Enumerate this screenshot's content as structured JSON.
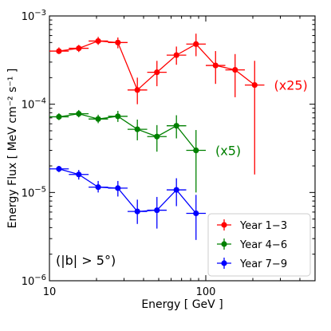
{
  "chart_data": {
    "type": "line",
    "xlabel": "Energy [ GeV ]",
    "ylabel": "Energy Flux [ MeV cm⁻² s⁻¹ ]",
    "xlim": [
      10,
      500
    ],
    "ylim": [
      1e-06,
      0.001
    ],
    "xscale": "log",
    "yscale": "log",
    "x_tick_labels": [
      {
        "value": 10,
        "label": "10"
      },
      {
        "value": 100,
        "label": "100"
      }
    ],
    "y_tick_labels": [
      {
        "value": 1e-06,
        "base": "10",
        "exp": "−6"
      },
      {
        "value": 1e-05,
        "base": "10",
        "exp": "−5"
      },
      {
        "value": 0.0001,
        "base": "10",
        "exp": "−4"
      },
      {
        "value": 0.001,
        "base": "10",
        "exp": "−3"
      }
    ],
    "grid": false,
    "legend_position": "bottom-right",
    "annotation": "(|b| > 5°)",
    "series": [
      {
        "name": "Year 1−3",
        "color": "#ff0000",
        "scale_label": "(x25)",
        "points": [
          {
            "x": 11.5,
            "xlo": 10.0,
            "xhi": 13.3,
            "y": 0.0004,
            "ylo": 0.00037,
            "yhi": 0.00044
          },
          {
            "x": 15.4,
            "xlo": 13.3,
            "xhi": 17.8,
            "y": 0.00043,
            "ylo": 0.00039,
            "yhi": 0.00047
          },
          {
            "x": 20.5,
            "xlo": 17.8,
            "xhi": 23.7,
            "y": 0.00052,
            "ylo": 0.00047,
            "yhi": 0.00058
          },
          {
            "x": 27.4,
            "xlo": 23.7,
            "xhi": 31.6,
            "y": 0.0005,
            "ylo": 0.00043,
            "yhi": 0.00057
          },
          {
            "x": 36.5,
            "xlo": 31.6,
            "xhi": 42.2,
            "y": 0.000145,
            "ylo": 0.0001,
            "yhi": 0.0002
          },
          {
            "x": 48.7,
            "xlo": 42.2,
            "xhi": 56.2,
            "y": 0.00023,
            "ylo": 0.00016,
            "yhi": 0.00031
          },
          {
            "x": 64.9,
            "xlo": 56.2,
            "xhi": 75.0,
            "y": 0.00036,
            "ylo": 0.00028,
            "yhi": 0.00045
          },
          {
            "x": 86.6,
            "xlo": 75.0,
            "xhi": 100.0,
            "y": 0.00048,
            "ylo": 0.00035,
            "yhi": 0.00063
          },
          {
            "x": 115.5,
            "xlo": 100.0,
            "xhi": 133.4,
            "y": 0.000275,
            "ylo": 0.00017,
            "yhi": 0.0004
          },
          {
            "x": 154.0,
            "xlo": 133.4,
            "xhi": 177.8,
            "y": 0.000245,
            "ylo": 0.00012,
            "yhi": 0.00037
          },
          {
            "x": 205.4,
            "xlo": 177.8,
            "xhi": 237.1,
            "y": 0.000165,
            "ylo": 1.6e-05,
            "yhi": 0.00031
          }
        ]
      },
      {
        "name": "Year 4−6",
        "color": "#008000",
        "scale_label": "(x5)",
        "points": [
          {
            "x": 11.5,
            "xlo": 10.0,
            "xhi": 13.3,
            "y": 7.2e-05,
            "ylo": 6.6e-05,
            "yhi": 7.9e-05
          },
          {
            "x": 15.4,
            "xlo": 13.3,
            "xhi": 17.8,
            "y": 7.8e-05,
            "ylo": 7.1e-05,
            "yhi": 8.6e-05
          },
          {
            "x": 20.5,
            "xlo": 17.8,
            "xhi": 23.7,
            "y": 6.8e-05,
            "ylo": 6.1e-05,
            "yhi": 7.6e-05
          },
          {
            "x": 27.4,
            "xlo": 23.7,
            "xhi": 31.6,
            "y": 7.3e-05,
            "ylo": 6.3e-05,
            "yhi": 8.4e-05
          },
          {
            "x": 36.5,
            "xlo": 31.6,
            "xhi": 42.2,
            "y": 5.2e-05,
            "ylo": 3.9e-05,
            "yhi": 6.7e-05
          },
          {
            "x": 48.7,
            "xlo": 42.2,
            "xhi": 56.2,
            "y": 4.3e-05,
            "ylo": 2.9e-05,
            "yhi": 5.8e-05
          },
          {
            "x": 64.9,
            "xlo": 56.2,
            "xhi": 75.0,
            "y": 5.7e-05,
            "ylo": 4.1e-05,
            "yhi": 7.5e-05
          },
          {
            "x": 86.6,
            "xlo": 75.0,
            "xhi": 100.0,
            "y": 3e-05,
            "ylo": 1e-05,
            "yhi": 5.1e-05
          }
        ]
      },
      {
        "name": "Year 7−9",
        "color": "#0000ff",
        "scale_label": "",
        "points": [
          {
            "x": 11.5,
            "xlo": 10.0,
            "xhi": 13.3,
            "y": 1.85e-05,
            "ylo": 1.7e-05,
            "yhi": 2e-05
          },
          {
            "x": 15.4,
            "xlo": 13.3,
            "xhi": 17.8,
            "y": 1.6e-05,
            "ylo": 1.4e-05,
            "yhi": 1.8e-05
          },
          {
            "x": 20.5,
            "xlo": 17.8,
            "xhi": 23.7,
            "y": 1.15e-05,
            "ylo": 1e-05,
            "yhi": 1.35e-05
          },
          {
            "x": 27.4,
            "xlo": 23.7,
            "xhi": 31.6,
            "y": 1.12e-05,
            "ylo": 9e-06,
            "yhi": 1.35e-05
          },
          {
            "x": 36.5,
            "xlo": 31.6,
            "xhi": 42.2,
            "y": 6.1e-06,
            "ylo": 4.4e-06,
            "yhi": 8.3e-06
          },
          {
            "x": 48.7,
            "xlo": 42.2,
            "xhi": 56.2,
            "y": 6.3e-06,
            "ylo": 3.9e-06,
            "yhi": 8.9e-06
          },
          {
            "x": 64.9,
            "xlo": 56.2,
            "xhi": 75.0,
            "y": 1.07e-05,
            "ylo": 7e-06,
            "yhi": 1.45e-05
          },
          {
            "x": 86.6,
            "xlo": 75.0,
            "xhi": 100.0,
            "y": 5.8e-06,
            "ylo": 2.9e-06,
            "yhi": 9.4e-06
          }
        ]
      }
    ]
  }
}
